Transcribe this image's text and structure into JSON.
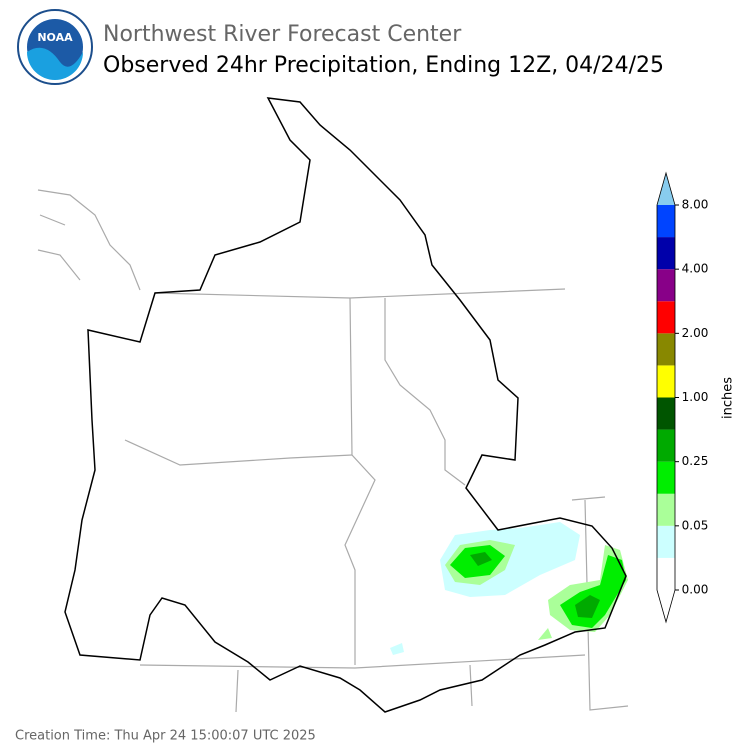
{
  "header": {
    "agency": "Northwest River Forecast Center",
    "title": "Observed 24hr Precipitation, Ending 12Z, 04/24/25",
    "logo_text": "NOAA"
  },
  "legend": {
    "label": "inches",
    "colors": [
      "#ffffff",
      "#ccffff",
      "#aaff99",
      "#00ee00",
      "#00aa00",
      "#005500",
      "#ffff00",
      "#888800",
      "#ff0000",
      "#880088",
      "#0000aa",
      "#0044ff"
    ],
    "under_color": "#ffffff",
    "over_color": "#88ccee",
    "ticks": [
      {
        "value": 0,
        "label": "0.00"
      },
      {
        "value": 0.05,
        "label": "0.05"
      },
      {
        "value": 0.25,
        "label": "0.25"
      },
      {
        "value": 1,
        "label": "1.00"
      },
      {
        "value": 2,
        "label": "2.00"
      },
      {
        "value": 4,
        "label": "4.00"
      },
      {
        "value": 8,
        "label": "8.00"
      }
    ]
  },
  "footer": {
    "creation_time": "Creation Time: Thu Apr 24 15:00:07 UTC 2025"
  }
}
